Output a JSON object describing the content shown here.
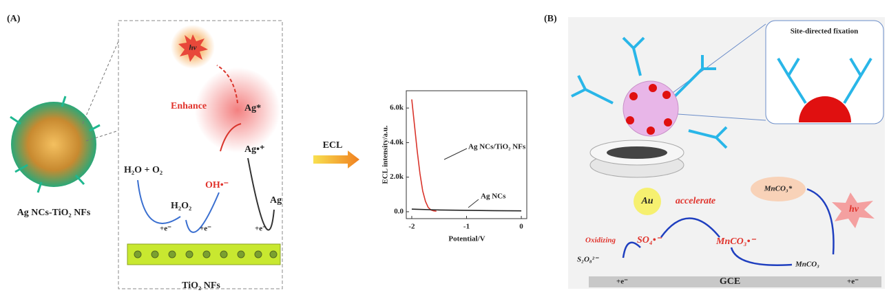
{
  "panel_a": {
    "label": "(A)",
    "hv": "hν",
    "enhance": "Enhance",
    "ag_excited": "Ag*",
    "ag_cation": "Ag•⁺",
    "oh_radical": "OH•⁻",
    "h2o_o2": "H₂O + O₂",
    "h2o2": "H₂O₂",
    "ag": "Ag",
    "electrons": [
      "+e⁻",
      "+e⁻",
      "+e⁻"
    ],
    "nanoparticle_caption": "Ag NCs-TiO₂ NFs",
    "substrate_caption": "TiO₂ NFs",
    "arrow_label": "ECL",
    "inset_chart": {
      "type": "line",
      "x_label": "Potential/V",
      "y_label": "ECL intensity/a.u.",
      "xlim": [
        -2.1,
        0.1
      ],
      "ylim": [
        -400,
        7000
      ],
      "xticks": [
        -2,
        -1,
        0
      ],
      "yticks": [
        {
          "value": 0,
          "label": "0.0"
        },
        {
          "value": 2000,
          "label": "2.0k"
        },
        {
          "value": 4000,
          "label": "4.0k"
        },
        {
          "value": 6000,
          "label": "6.0k"
        }
      ],
      "series": [
        {
          "name": "Ag NCs/TiO₂ NFs",
          "color": "#d9342b",
          "x": [
            -2,
            -1.95,
            -1.9,
            -1.85,
            -1.8,
            -1.75,
            -1.7,
            -1.65,
            -1.6,
            -1.55
          ],
          "values": [
            6500,
            5000,
            3500,
            2200,
            1200,
            600,
            250,
            100,
            50,
            30
          ]
        },
        {
          "name": "Ag NCs",
          "color": "#222222",
          "x": [
            -2,
            -1.5,
            -1,
            -0.5,
            0
          ],
          "values": [
            150,
            100,
            80,
            60,
            50
          ]
        }
      ]
    }
  },
  "panel_b": {
    "label": "(B)",
    "inset_title": "Site-directed fixation",
    "au": "Au",
    "accelerate": "accelerate",
    "mnco3_excited": "MnCO₃*",
    "hv": "hv",
    "oxidizing": "Oxidizing",
    "so4_radical": "SO₄•⁻",
    "mnco3_radical": "MnCO₃•⁻",
    "s2o8": "S₂O₈²⁻",
    "mnco3": "MnCO₃",
    "electrode_left": "+e⁻",
    "electrode": "GCE",
    "electrode_right": "+e⁻"
  }
}
